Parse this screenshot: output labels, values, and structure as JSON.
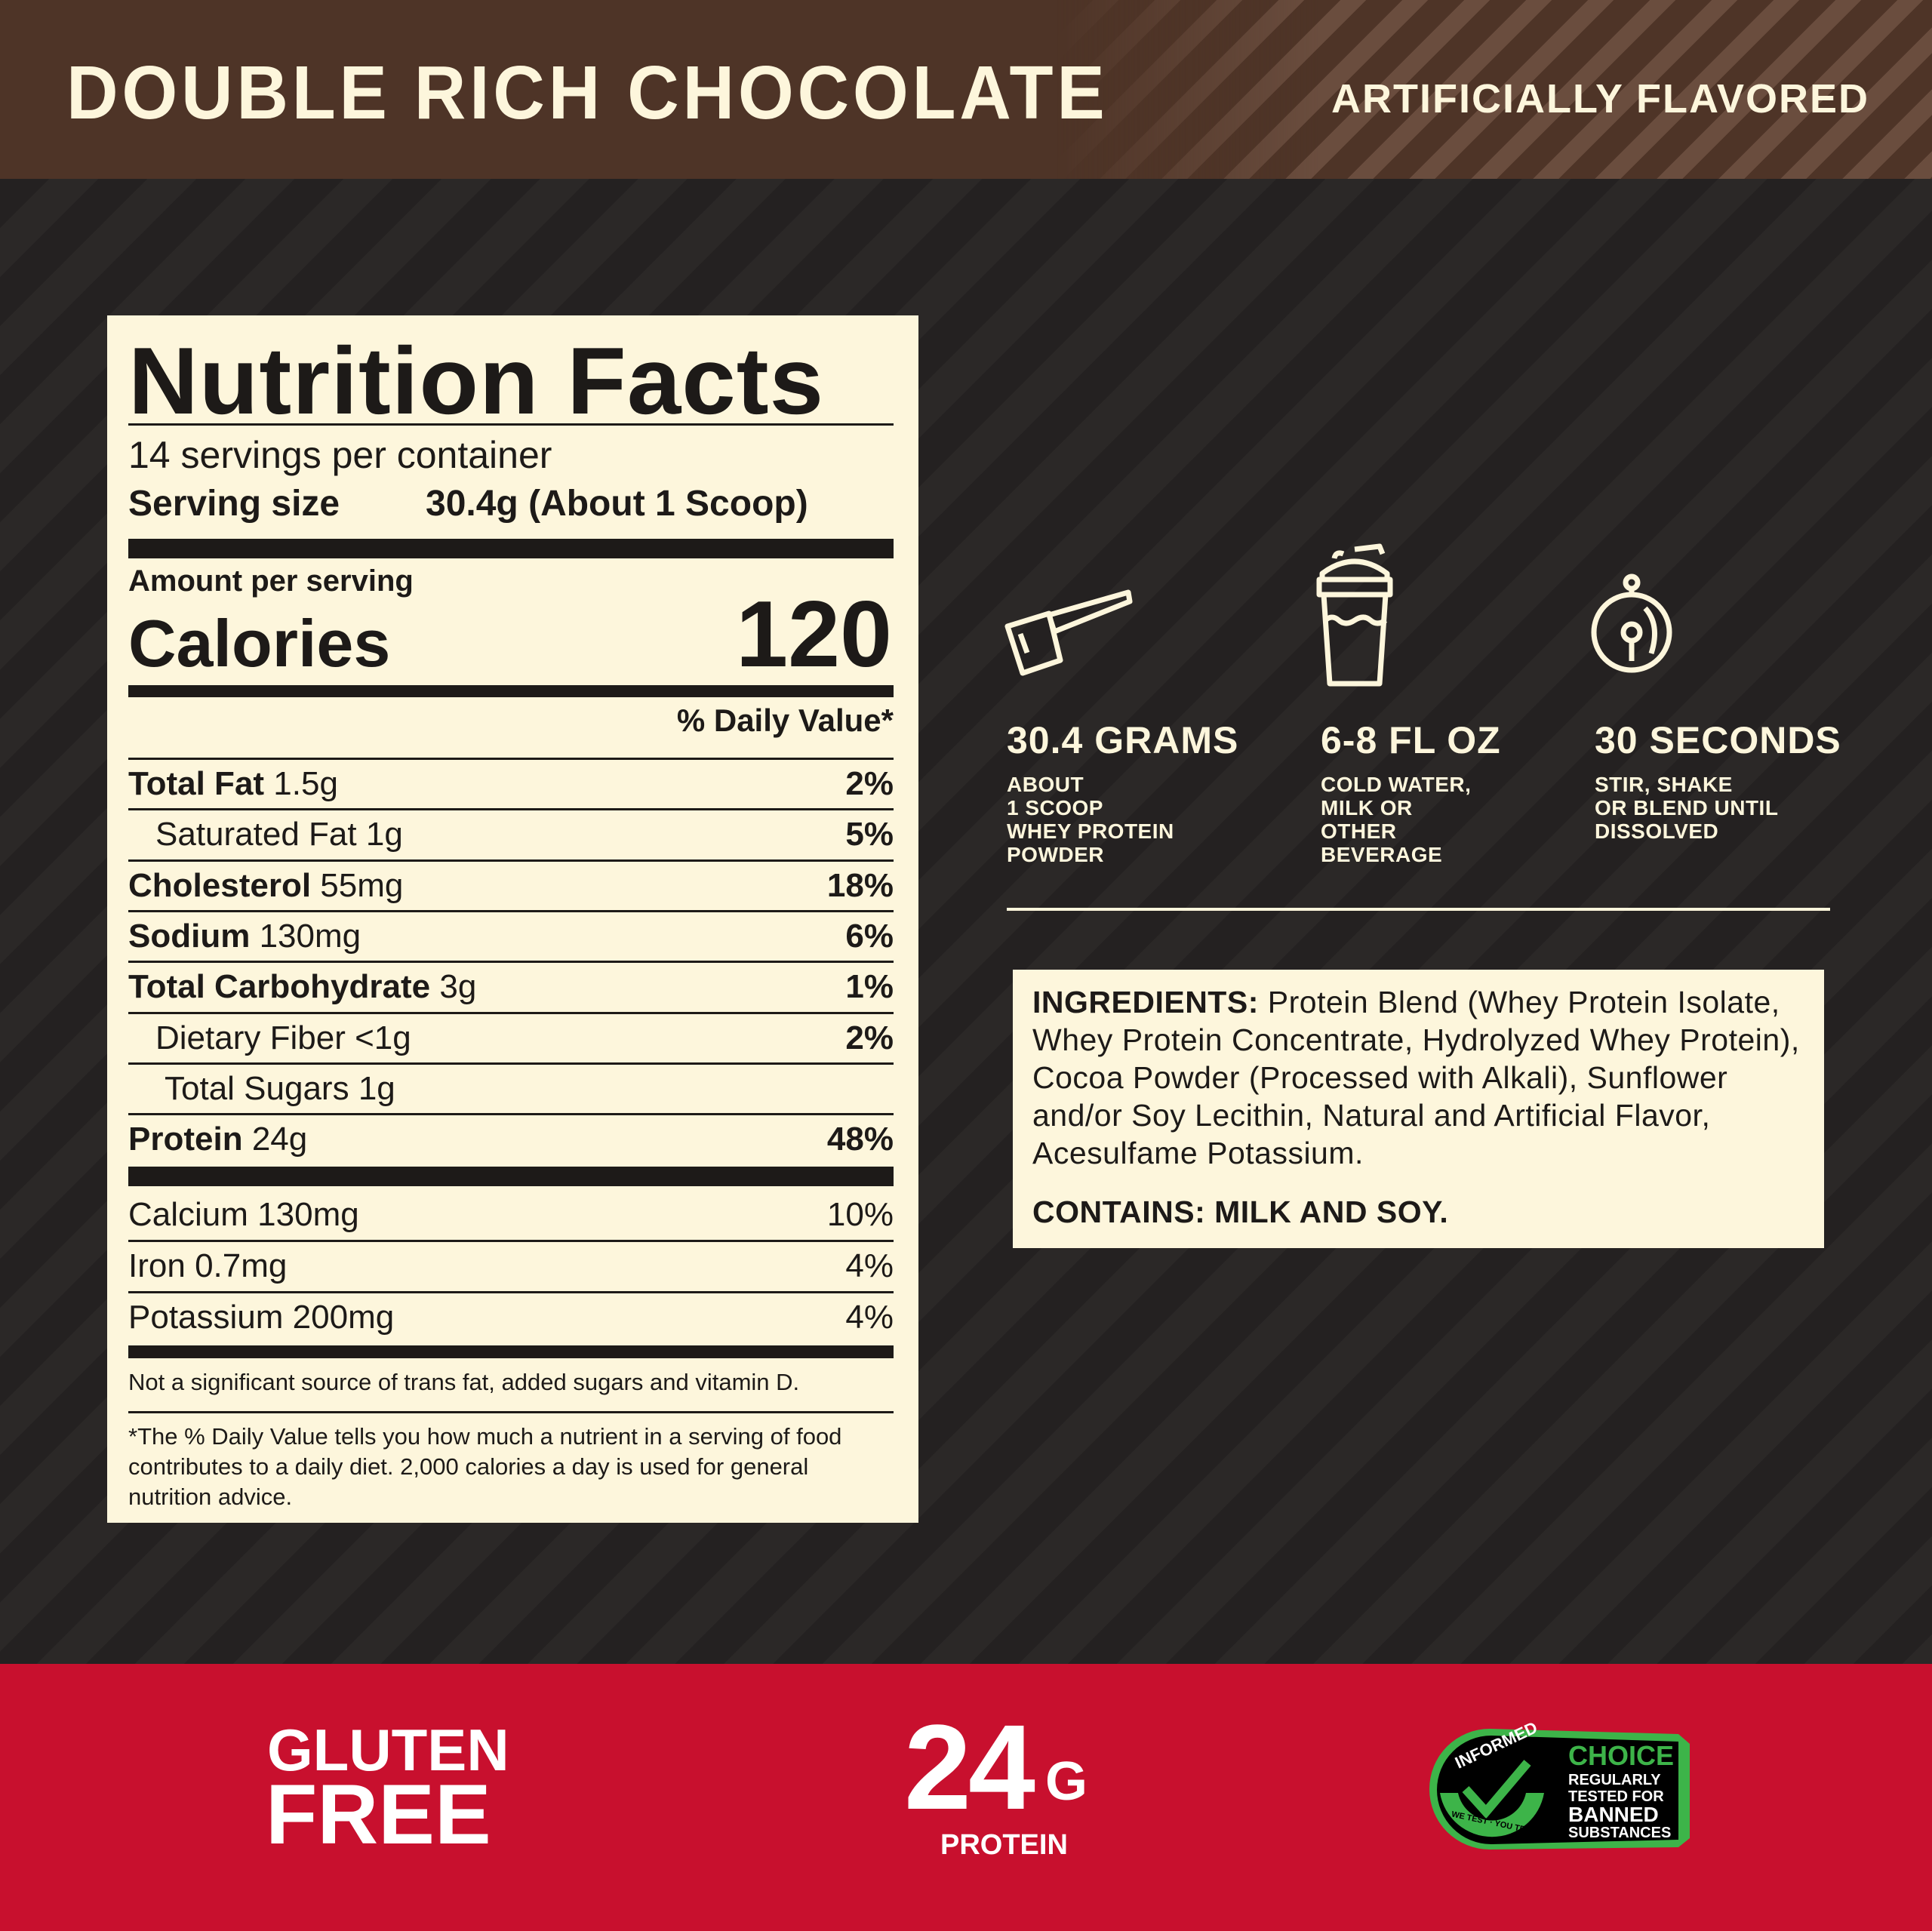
{
  "header": {
    "title": "DOUBLE RICH CHOCOLATE",
    "flavor": "ARTIFICIALLY FLAVORED",
    "color": "#4e3427"
  },
  "nutrition": {
    "title": "Nutrition Facts",
    "servings": "14 servings per container",
    "serving_size_label": "Serving size",
    "serving_size_value": "30.4g (About 1 Scoop)",
    "amount_per_serving": "Amount per serving",
    "calories_label": "Calories",
    "calories_value": "120",
    "dv_header": "% Daily Value*",
    "rows": [
      {
        "name": "Total Fat",
        "amount": "1.5g",
        "dv": "2%",
        "bold": true,
        "indent": 0
      },
      {
        "name": "Saturated Fat",
        "amount": "1g",
        "dv": "5%",
        "bold": false,
        "indent": 1
      },
      {
        "name": "Cholesterol",
        "amount": "55mg",
        "dv": "18%",
        "bold": true,
        "indent": 0
      },
      {
        "name": "Sodium",
        "amount": "130mg",
        "dv": "6%",
        "bold": true,
        "indent": 0
      },
      {
        "name": "Total Carbohydrate",
        "amount": "3g",
        "dv": "1%",
        "bold": true,
        "indent": 0
      },
      {
        "name": "Dietary Fiber",
        "amount": "<1g",
        "dv": "2%",
        "bold": false,
        "indent": 1
      },
      {
        "name": "Total Sugars",
        "amount": "1g",
        "dv": "",
        "bold": false,
        "indent": 2
      },
      {
        "name": "Protein",
        "amount": "24g",
        "dv": "48%",
        "bold": true,
        "indent": 0
      }
    ],
    "minerals": [
      {
        "name": "Calcium",
        "amount": "130mg",
        "dv": "10%"
      },
      {
        "name": "Iron",
        "amount": "0.7mg",
        "dv": "4%"
      },
      {
        "name": "Potassium",
        "amount": "200mg",
        "dv": "4%"
      }
    ],
    "note": "Not a significant source of trans fat, added sugars and vitamin D.",
    "footnote": "*The % Daily Value tells you how much a nutrient in a serving of food contributes to a daily diet. 2,000 calories a day is used for general nutrition advice."
  },
  "directions": [
    {
      "icon": "scoop-icon",
      "heading": "30.4 GRAMS",
      "text": "ABOUT\n1 SCOOP\nWHEY PROTEIN\nPOWDER"
    },
    {
      "icon": "shaker-bottle-icon",
      "heading": "6-8 FL OZ",
      "text": "COLD WATER,\nMILK OR\nOTHER\nBEVERAGE"
    },
    {
      "icon": "timer-icon",
      "heading": "30 SECONDS",
      "text": "STIR, SHAKE\nOR BLEND UNTIL\nDISSOLVED"
    }
  ],
  "ingredients": {
    "label": "INGREDIENTS:",
    "text": "Protein Blend (Whey Protein Isolate, Whey Protein Concentrate, Hydrolyzed Whey Protein), Cocoa Powder (Processed with Alkali), Sunflower and/or Soy Lecithin, Natural and Artificial Flavor, Acesulfame Potassium.",
    "contains": "CONTAINS: MILK AND SOY."
  },
  "footer": {
    "color": "#c8102e",
    "gluten_line1": "GLUTEN",
    "gluten_line2": "FREE",
    "protein_number": "24",
    "protein_unit": "G",
    "protein_label": "PROTEIN",
    "badge": {
      "ring_top": "INFORMED",
      "ring_bottom": "WE TEST · YOU TRUST",
      "title": "CHOICE",
      "line1": "REGULARLY",
      "line2": "TESTED FOR",
      "line3": "BANNED",
      "line4": "SUBSTANCES",
      "color": "#3db449"
    }
  }
}
